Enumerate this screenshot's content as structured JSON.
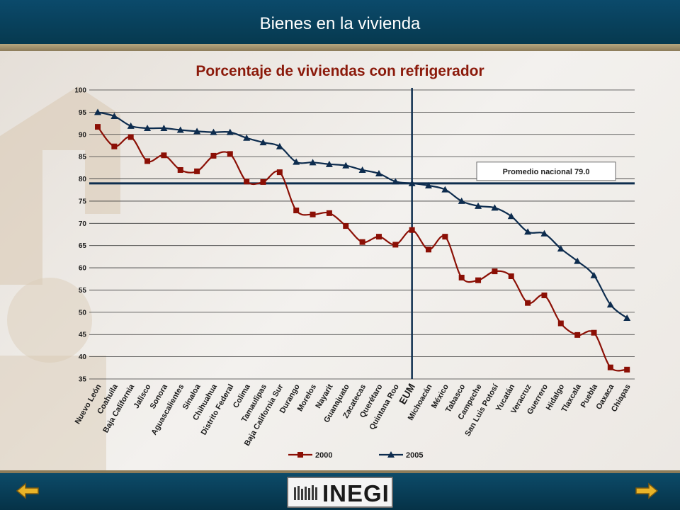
{
  "header": {
    "title": "Bienes en la vivienda"
  },
  "footer": {
    "logo_text": "INEGI"
  },
  "colors": {
    "header_bg": "#0b4a6b",
    "series_2000": "#8b0f05",
    "series_2005": "#0d2c4e",
    "title": "#8b1a0b"
  },
  "nav": {
    "prev_icon": "arrow-left-icon",
    "next_icon": "arrow-right-icon"
  },
  "chart_data": {
    "type": "line",
    "title": "Porcentaje de viviendas con refrigerador",
    "xlabel": "",
    "ylabel": "",
    "ylim": [
      35,
      100
    ],
    "yticks": [
      35,
      40,
      45,
      50,
      55,
      60,
      65,
      70,
      75,
      80,
      85,
      90,
      95,
      100
    ],
    "grid": true,
    "legend_position": "bottom-center",
    "categories": [
      "Nuevo León",
      "Coahuila",
      "Baja California",
      "Jalisco",
      "Sonora",
      "Aguascalientes",
      "Sinaloa",
      "Chihuahua",
      "Distrito Federal",
      "Colima",
      "Tamaulipas",
      "Baja California Sur",
      "Durango",
      "Morelos",
      "Nayarit",
      "Guanajuato",
      "Zacatecas",
      "Querétaro",
      "Quintana Roo",
      "EUM",
      "Michoacán",
      "México",
      "Tabasco",
      "Campeche",
      "San Luis Potosí",
      "Yucatán",
      "Veracruz",
      "Guerrero",
      "Hidalgo",
      "Tlaxcala",
      "Puebla",
      "Oaxaca",
      "Chiapas"
    ],
    "highlight_category": "EUM",
    "series": [
      {
        "name": "2000",
        "marker": "square",
        "color": "#8b0f05",
        "values": [
          91.7,
          87.3,
          89.4,
          84.0,
          85.3,
          82.0,
          81.7,
          85.2,
          85.6,
          79.4,
          79.3,
          81.5,
          72.9,
          72.0,
          72.3,
          69.4,
          65.8,
          67.0,
          65.2,
          68.5,
          64.1,
          67.0,
          57.8,
          57.2,
          59.2,
          58.1,
          52.1,
          53.8,
          47.5,
          44.9,
          45.4,
          37.6,
          37.1
        ]
      },
      {
        "name": "2005",
        "marker": "triangle",
        "color": "#0d2c4e",
        "values": [
          95.0,
          94.1,
          91.9,
          91.4,
          91.4,
          91.0,
          90.7,
          90.5,
          90.5,
          89.2,
          88.2,
          87.3,
          83.8,
          83.7,
          83.3,
          83.0,
          82.0,
          81.2,
          79.4,
          79.0,
          78.5,
          77.6,
          75.0,
          73.9,
          73.5,
          71.6,
          68.1,
          67.7,
          64.3,
          61.5,
          58.3,
          51.7,
          48.7
        ]
      }
    ],
    "reference_line": {
      "label": "Promedio nacional  79.0",
      "value": 79.0
    }
  }
}
